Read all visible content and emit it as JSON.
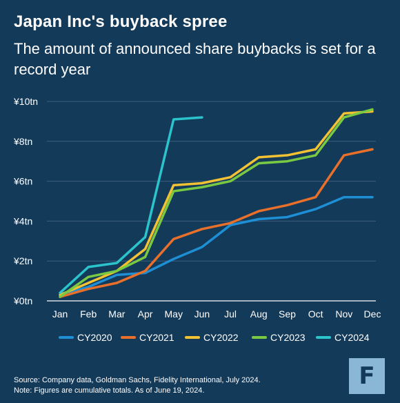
{
  "header": {
    "title": "Japan Inc's buyback spree",
    "subtitle": "The amount of announced share buybacks is set for a record year"
  },
  "footer": {
    "source": "Source: Company data, Goldman Sachs, Fidelity International, July 2024.",
    "note": "Note: Figures are cumulative totals. As of June 19, 2024."
  },
  "logo": {
    "icon": "fidelity-logo-icon",
    "glyph": "F"
  },
  "colors": {
    "background": "#143a5a",
    "grid": "#3d5f7c"
  },
  "chart_data": {
    "type": "line",
    "title": "Japan Inc's buyback spree",
    "subtitle": "The amount of announced share buybacks is set for a record year",
    "xlabel": "",
    "ylabel": "",
    "categories": [
      "Jan",
      "Feb",
      "Mar",
      "Apr",
      "May",
      "Jun",
      "Jul",
      "Aug",
      "Sep",
      "Oct",
      "Nov",
      "Dec"
    ],
    "ylim": [
      0,
      10
    ],
    "yticks": [
      0,
      2,
      4,
      6,
      8,
      10
    ],
    "ytick_labels": [
      "¥0tn",
      "¥2tn",
      "¥4tn",
      "¥6tn",
      "¥8tn",
      "¥10tn"
    ],
    "grid": true,
    "legend_position": "bottom",
    "series": [
      {
        "name": "CY2020",
        "color": "#1e8fd5",
        "values": [
          0.3,
          0.7,
          1.3,
          1.4,
          2.1,
          2.7,
          3.8,
          4.1,
          4.2,
          4.6,
          5.2,
          5.2
        ]
      },
      {
        "name": "CY2021",
        "color": "#e8702a",
        "values": [
          0.2,
          0.6,
          0.9,
          1.5,
          3.1,
          3.6,
          3.9,
          4.5,
          4.8,
          5.2,
          7.3,
          7.6
        ]
      },
      {
        "name": "CY2022",
        "color": "#f2c233",
        "values": [
          0.3,
          0.9,
          1.5,
          2.6,
          5.8,
          5.9,
          6.2,
          7.2,
          7.3,
          7.6,
          9.4,
          9.5
        ]
      },
      {
        "name": "CY2023",
        "color": "#7ac943",
        "values": [
          0.2,
          1.2,
          1.5,
          2.2,
          5.5,
          5.7,
          6.0,
          6.9,
          7.0,
          7.3,
          9.2,
          9.6
        ]
      },
      {
        "name": "CY2024",
        "color": "#2bc4cc",
        "values": [
          0.4,
          1.7,
          1.9,
          3.2,
          9.1,
          9.2,
          null,
          null,
          null,
          null,
          null,
          null
        ]
      }
    ]
  }
}
